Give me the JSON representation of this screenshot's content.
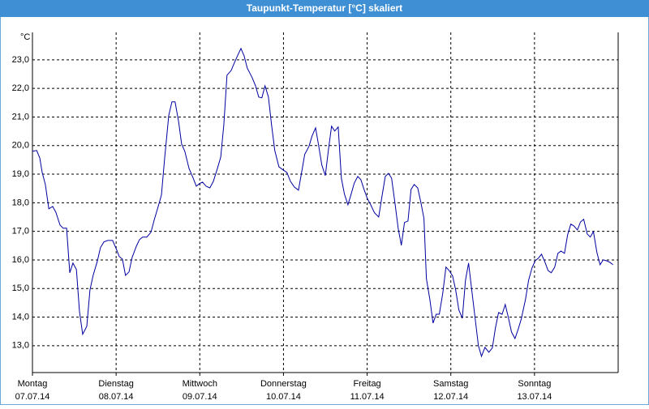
{
  "chart_data": {
    "type": "line",
    "title": "Taupunkt-Temperatur [°C] skaliert",
    "y_unit": "°C",
    "xlim": [
      0,
      168
    ],
    "ylim": [
      12.06,
      23.96
    ],
    "grid": true,
    "xticks": [
      {
        "value": 0,
        "label": "07.07.14"
      },
      {
        "value": 24,
        "label": "08.07.14"
      },
      {
        "value": 48,
        "label": "09.07.14"
      },
      {
        "value": 72,
        "label": "10.07.14"
      },
      {
        "value": 96,
        "label": "11.07.14"
      },
      {
        "value": 120,
        "label": "12.07.14"
      },
      {
        "value": 144,
        "label": "13.07.14"
      }
    ],
    "xtick_days": [
      "Montag",
      "Dienstag",
      "Mittwoch",
      "Donnerstag",
      "Freitag",
      "Samstag",
      "Sonntag"
    ],
    "yticks": [
      {
        "value": 13,
        "label": "13,0"
      },
      {
        "value": 14,
        "label": "14,0"
      },
      {
        "value": 15,
        "label": "15,0"
      },
      {
        "value": 16,
        "label": "16,0"
      },
      {
        "value": 17,
        "label": "17,0"
      },
      {
        "value": 18,
        "label": "18,0"
      },
      {
        "value": 19,
        "label": "19,0"
      },
      {
        "value": 20,
        "label": "20,0"
      },
      {
        "value": 21,
        "label": "21,0"
      },
      {
        "value": 22,
        "label": "22,0"
      },
      {
        "value": 23,
        "label": "23,0"
      }
    ],
    "series": [
      {
        "color": "#0000a0",
        "x": [
          0,
          1.2,
          2.1,
          2.8,
          3.7,
          4.7,
          5.8,
          6.7,
          7.9,
          8.8,
          9.8,
          10.7,
          11.6,
          12.6,
          13.5,
          14.4,
          15.6,
          16.5,
          17.4,
          18.6,
          19.5,
          20.5,
          21.6,
          23.0,
          24.0,
          24.9,
          25.8,
          26.7,
          27.7,
          28.6,
          29.8,
          30.7,
          31.6,
          32.8,
          34.0,
          34.9,
          36.0,
          37.0,
          37.9,
          39.1,
          40.0,
          40.9,
          41.9,
          42.8,
          43.7,
          44.9,
          46.0,
          47.0,
          47.9,
          48.8,
          49.8,
          50.9,
          51.9,
          53.0,
          54.0,
          54.9,
          55.8,
          57.0,
          57.9,
          58.8,
          59.8,
          60.7,
          61.6,
          63.0,
          64.0,
          64.9,
          65.8,
          66.7,
          67.7,
          68.6,
          69.5,
          70.7,
          71.9,
          73.0,
          74.0,
          75.1,
          76.3,
          77.2,
          78.1,
          79.3,
          80.2,
          81.2,
          82.1,
          83.0,
          84.0,
          84.9,
          85.8,
          86.7,
          87.7,
          88.6,
          89.5,
          90.5,
          91.4,
          92.3,
          93.3,
          94.2,
          95.1,
          96.0,
          97.0,
          98.1,
          99.3,
          100.2,
          101.2,
          102.1,
          103.0,
          104.0,
          104.9,
          105.8,
          106.7,
          107.7,
          108.6,
          109.5,
          110.5,
          111.4,
          112.3,
          113.0,
          114.0,
          114.9,
          115.8,
          116.7,
          117.7,
          118.6,
          119.5,
          120.5,
          121.4,
          122.3,
          123.3,
          124.2,
          125.1,
          126.0,
          127.0,
          127.9,
          128.8,
          129.8,
          130.9,
          131.9,
          132.8,
          133.7,
          134.7,
          135.6,
          136.5,
          137.4,
          138.4,
          139.3,
          140.2,
          141.4,
          142.3,
          143.3,
          144.2,
          145.1,
          146.0,
          147.0,
          147.9,
          148.8,
          149.8,
          150.7,
          151.6,
          152.6,
          153.5,
          154.4,
          155.3,
          156.3,
          157.2,
          158.1,
          159.1,
          160.0,
          160.9,
          161.9,
          162.8,
          163.7,
          164.7,
          165.6,
          166.5
        ],
        "values": [
          19.8,
          19.83,
          19.57,
          19.06,
          18.64,
          17.79,
          17.87,
          17.67,
          17.22,
          17.11,
          17.11,
          15.55,
          15.89,
          15.66,
          14.19,
          13.4,
          13.68,
          14.95,
          15.46,
          15.95,
          16.43,
          16.63,
          16.68,
          16.68,
          16.4,
          16.12,
          16.03,
          15.46,
          15.58,
          16.09,
          16.48,
          16.71,
          16.8,
          16.8,
          16.97,
          17.39,
          17.84,
          18.27,
          19.54,
          21.05,
          21.53,
          21.53,
          20.85,
          20.05,
          19.8,
          19.2,
          18.89,
          18.58,
          18.67,
          18.72,
          18.58,
          18.52,
          18.75,
          19.18,
          19.6,
          20.73,
          22.46,
          22.63,
          22.89,
          23.14,
          23.4,
          23.14,
          22.72,
          22.38,
          22.09,
          21.7,
          21.67,
          22.09,
          21.7,
          20.71,
          19.83,
          19.26,
          19.15,
          19.06,
          18.75,
          18.55,
          18.44,
          19.06,
          19.69,
          19.97,
          20.34,
          20.62,
          20.0,
          19.32,
          18.95,
          19.86,
          20.68,
          20.51,
          20.65,
          18.86,
          18.3,
          17.93,
          18.3,
          18.69,
          18.92,
          18.81,
          18.47,
          18.16,
          17.93,
          17.65,
          17.5,
          18.18,
          18.92,
          19.03,
          18.86,
          17.96,
          17.11,
          16.51,
          17.31,
          17.36,
          18.47,
          18.64,
          18.52,
          18.01,
          17.45,
          15.35,
          14.61,
          13.79,
          14.1,
          14.1,
          14.84,
          15.75,
          15.63,
          15.44,
          14.95,
          14.25,
          13.96,
          15.29,
          15.89,
          14.95,
          13.93,
          13.0,
          12.63,
          12.94,
          12.77,
          12.92,
          13.62,
          14.16,
          14.1,
          14.44,
          13.99,
          13.48,
          13.25,
          13.57,
          13.93,
          14.61,
          15.29,
          15.72,
          15.97,
          16.06,
          16.2,
          15.92,
          15.63,
          15.55,
          15.75,
          16.23,
          16.31,
          16.23,
          16.88,
          17.25,
          17.19,
          17.05,
          17.33,
          17.42,
          16.91,
          16.8,
          16.99,
          16.26,
          15.83,
          16.0,
          15.97,
          15.92,
          15.83
        ]
      }
    ]
  }
}
